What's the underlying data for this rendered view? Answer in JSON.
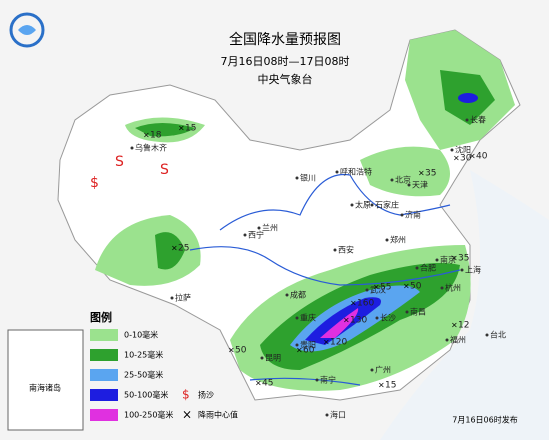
{
  "header": {
    "title": "全国降水量预报图",
    "period": "7月16日08时—17日08时",
    "issuer": "中央气象台"
  },
  "legend": {
    "title": "图例",
    "items": [
      "0-10毫米",
      "10-25毫米",
      "25-50毫米",
      "50-100毫米",
      "100-250毫米",
      "扬沙",
      "降雨中心值"
    ]
  },
  "inset": {
    "label": "南海诸岛"
  },
  "footer": {
    "issued": "7月16日06时发布"
  },
  "rain_centers": [
    "18",
    "15",
    "25",
    "30",
    "40",
    "35",
    "35",
    "55",
    "50",
    "160",
    "130",
    "120",
    "60",
    "50",
    "45",
    "15",
    "12"
  ],
  "cities": [
    "乌鲁木齐",
    "拉萨",
    "西宁",
    "兰州",
    "银川",
    "呼和浩特",
    "太原",
    "石家庄",
    "北京",
    "天津",
    "济南",
    "郑州",
    "西安",
    "成都",
    "重庆",
    "贵阳",
    "昆明",
    "武汉",
    "长沙",
    "南昌",
    "合肥",
    "南京",
    "上海",
    "杭州",
    "福州",
    "台北",
    "广州",
    "南宁",
    "海口",
    "沈阳",
    "长春"
  ]
}
